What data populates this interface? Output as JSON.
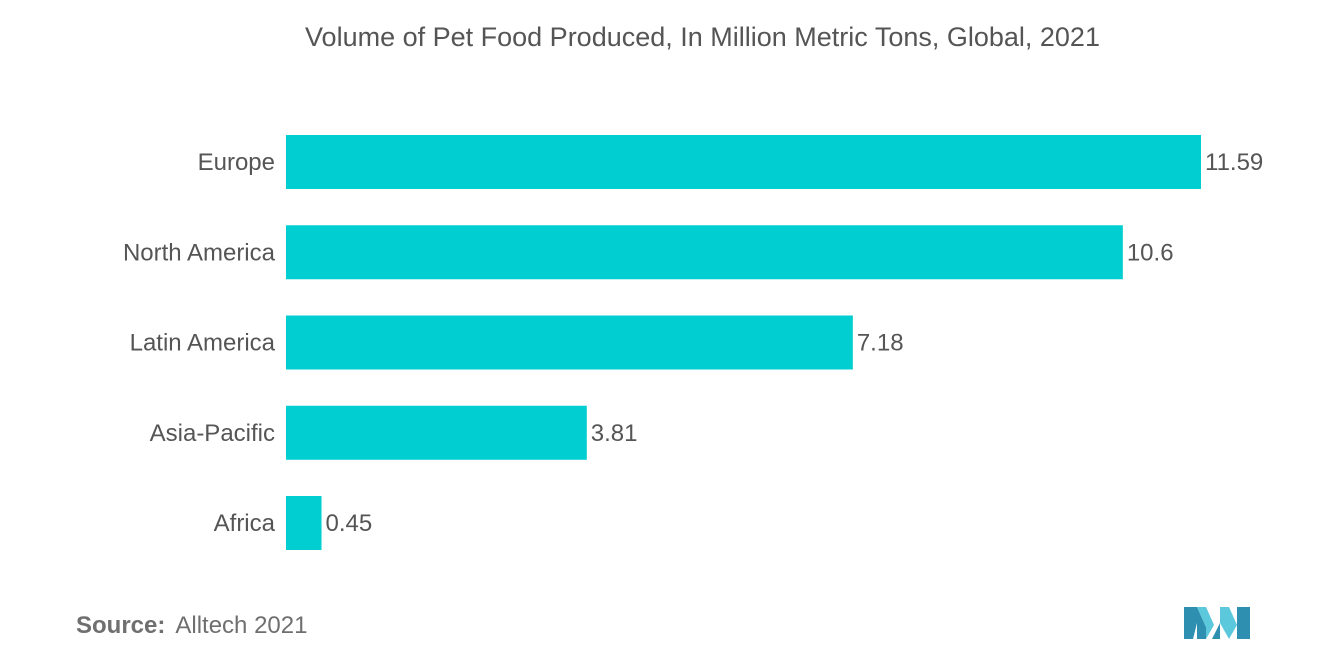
{
  "title": "Volume of Pet Food Produced, In Million Metric Tons, Global, 2021",
  "source": {
    "label": "Source:",
    "text": "Alltech 2021"
  },
  "colors": {
    "bar": "#00CED1",
    "text": "#555555",
    "logo_light": "#5BC8DC",
    "logo_dark": "#2E8FB0"
  },
  "logo_icon": "mordor-logo-icon",
  "chart_data": {
    "type": "bar",
    "orientation": "horizontal",
    "title": "Volume of Pet Food Produced, In Million Metric Tons, Global, 2021",
    "categories": [
      "Europe",
      "North America",
      "Latin America",
      "Asia-Pacific",
      "Africa"
    ],
    "values": [
      11.59,
      10.6,
      7.18,
      3.81,
      0.45
    ],
    "value_labels": [
      "11.59",
      "10.6",
      "7.18",
      "3.81",
      "0.45"
    ],
    "xlabel": "",
    "ylabel": "",
    "xlim": [
      0,
      11.59
    ],
    "grid": false,
    "legend": "none"
  }
}
